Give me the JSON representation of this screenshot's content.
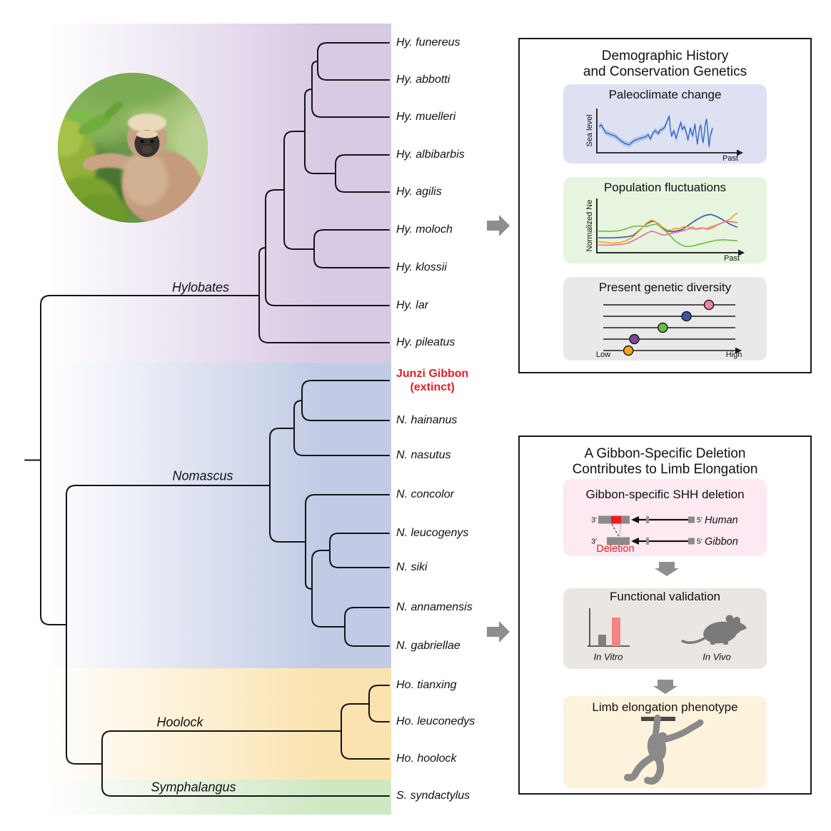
{
  "tree": {
    "genera": [
      {
        "label": "Hylobates"
      },
      {
        "label": "Nomascus"
      },
      {
        "label": "Hoolock"
      },
      {
        "label": "Symphalangus"
      }
    ],
    "tips": [
      {
        "label": "Hy. funereus"
      },
      {
        "label": "Hy. abbotti"
      },
      {
        "label": "Hy. muelleri"
      },
      {
        "label": "Hy. albibarbis"
      },
      {
        "label": "Hy. agilis"
      },
      {
        "label": "Hy. moloch"
      },
      {
        "label": "Hy. klossii"
      },
      {
        "label": "Hy. lar"
      },
      {
        "label": "Hy. pileatus"
      },
      {
        "label": "Junzi Gibbon",
        "sublabel": "(extinct)",
        "color": "#ec1c24"
      },
      {
        "label": "N. hainanus"
      },
      {
        "label": "N. nasutus"
      },
      {
        "label": "N. concolor"
      },
      {
        "label": "N. leucogenys"
      },
      {
        "label": "N. siki"
      },
      {
        "label": "N. annamensis"
      },
      {
        "label": "N. gabriellae"
      },
      {
        "label": "Ho. tianxing"
      },
      {
        "label": "Ho. leuconedys"
      },
      {
        "label": "Ho. hoolock"
      },
      {
        "label": "S. syndactylus"
      }
    ]
  },
  "panel_demography": {
    "title_line1": "Demographic History",
    "title_line2": "and Conservation Genetics",
    "paleoclimate": {
      "title": "Paleoclimate change",
      "ylabel": "Sea level",
      "xlabel": "Past"
    },
    "population": {
      "title": "Population fluctuations",
      "ylabel": "Normalized Ne",
      "xlabel": "Past"
    },
    "diversity": {
      "title": "Present genetic diversity",
      "low": "Low",
      "high": "High"
    }
  },
  "panel_deletion": {
    "title_line1": "A Gibbon-Specific Deletion",
    "title_line2": "Contributes to Limb Elongation",
    "shh": {
      "title": "Gibbon-specific SHH deletion",
      "three_prime": "3'",
      "five_prime": "5'",
      "human": "Human",
      "gibbon": "Gibbon",
      "deletion": "Deletion"
    },
    "validation": {
      "title": "Functional validation",
      "in_vitro": "In Vitro",
      "in_vivo": "In Vivo"
    },
    "phenotype": {
      "title": "Limb elongation phenotype"
    }
  },
  "colors": {
    "extinct_red": "#ec1c24",
    "deletion_red": "#ec1c24",
    "flow_arrow_gray": "#8e8e8e",
    "band_hylobates": "#d8cae4",
    "band_nomascus": "#c1cbe5",
    "band_hoolock": "#fbe3af",
    "band_symphalangus": "#cfe8c3",
    "silhouette_gray": "#8a8a8a"
  },
  "chart_data": [
    {
      "type": "line",
      "title": "Paleoclimate change",
      "xlabel": "Past",
      "ylabel": "Sea level",
      "band": 7,
      "band_color": "#8fb1e4",
      "line_color": "#3366cc",
      "series": [
        {
          "name": "sea_level",
          "x": [
            0,
            2,
            4,
            6,
            8,
            10,
            12,
            14,
            16,
            18,
            20,
            22,
            24,
            26,
            28,
            30,
            32,
            34,
            36,
            38,
            40,
            42,
            43,
            44,
            46,
            48,
            50,
            51,
            52,
            54,
            56,
            57,
            58,
            60,
            61,
            62,
            64,
            66,
            68,
            70,
            71,
            73,
            75,
            76,
            78,
            80,
            82,
            83,
            84,
            86,
            87,
            88,
            89,
            91,
            92,
            94,
            95,
            97
          ],
          "y": [
            62,
            66,
            55,
            46,
            45,
            42,
            40,
            38,
            33,
            28,
            24,
            20,
            18,
            17,
            22,
            27,
            29,
            31,
            33,
            35,
            36,
            42,
            36,
            31,
            45,
            52,
            47,
            44,
            53,
            55,
            60,
            66,
            74,
            88,
            55,
            38,
            52,
            32,
            55,
            73,
            55,
            62,
            42,
            28,
            58,
            38,
            68,
            40,
            18,
            60,
            65,
            35,
            22,
            72,
            80,
            12,
            38,
            58
          ]
        }
      ]
    },
    {
      "type": "line",
      "title": "Population fluctuations",
      "xlabel": "Past",
      "ylabel": "Normalized Ne",
      "series": [
        {
          "name": "species_a",
          "color": "#72c04e",
          "x": [
            0,
            5,
            10,
            15,
            20,
            25,
            30,
            35,
            38,
            42,
            45,
            50,
            55,
            60,
            63,
            68,
            73,
            80,
            85,
            90,
            95,
            100
          ],
          "y": [
            42,
            42,
            42,
            43,
            47,
            52,
            53,
            52,
            55,
            57,
            50,
            38,
            22,
            13,
            10,
            11,
            15,
            20,
            23,
            24,
            23,
            22
          ]
        },
        {
          "name": "species_b",
          "color": "#3a5dae",
          "x": [
            0,
            5,
            10,
            15,
            20,
            25,
            30,
            35,
            38,
            40,
            43,
            47,
            50,
            53,
            57,
            60,
            65,
            70,
            75,
            78,
            81,
            85,
            90,
            95,
            100
          ],
          "y": [
            28,
            28,
            28,
            29,
            30,
            33,
            45,
            58,
            62,
            63,
            58,
            48,
            42,
            41,
            43,
            45,
            55,
            65,
            73,
            76,
            77,
            73,
            65,
            56,
            50
          ]
        },
        {
          "name": "species_c",
          "color": "#f3a71f",
          "x": [
            0,
            5,
            10,
            15,
            20,
            25,
            30,
            35,
            38,
            40,
            43,
            47,
            50,
            53,
            55,
            58,
            60,
            63,
            65,
            68,
            70,
            73,
            75,
            78,
            80,
            83,
            85,
            88,
            90,
            93,
            95,
            97,
            100
          ],
          "y": [
            20,
            19,
            17,
            18,
            22,
            30,
            44,
            60,
            65,
            64,
            57,
            49,
            44,
            45,
            48,
            47,
            50,
            52,
            50,
            51,
            46,
            47,
            49,
            46,
            47,
            50,
            55,
            58,
            62,
            65,
            68,
            74,
            80
          ]
        },
        {
          "name": "species_d",
          "color": "#ef6f9f",
          "x": [
            0,
            5,
            10,
            15,
            20,
            25,
            30,
            35,
            38,
            40,
            43,
            45,
            48,
            52,
            55,
            58,
            62,
            65,
            68,
            70,
            72,
            75,
            78,
            80,
            83,
            85,
            88,
            90,
            93,
            95,
            100
          ],
          "y": [
            13,
            13,
            13,
            14,
            16,
            22,
            30,
            38,
            42,
            41,
            38,
            35,
            34,
            37,
            39,
            41,
            44,
            47,
            48,
            46,
            48,
            49,
            47,
            50,
            53,
            55,
            58,
            61,
            63,
            62,
            60
          ]
        }
      ]
    },
    {
      "type": "scatter",
      "title": "Present genetic diversity",
      "xlabel_low": "Low",
      "xlabel_high": "High",
      "points": [
        {
          "row": 0,
          "value": 0.8,
          "color": "#f07fb0"
        },
        {
          "row": 1,
          "value": 0.63,
          "color": "#3d55a7"
        },
        {
          "row": 2,
          "value": 0.45,
          "color": "#69bc45"
        },
        {
          "row": 3,
          "value": 0.235,
          "color": "#7f449b"
        },
        {
          "row": 4,
          "value": 0.19,
          "color": "#f5a413"
        }
      ]
    }
  ]
}
